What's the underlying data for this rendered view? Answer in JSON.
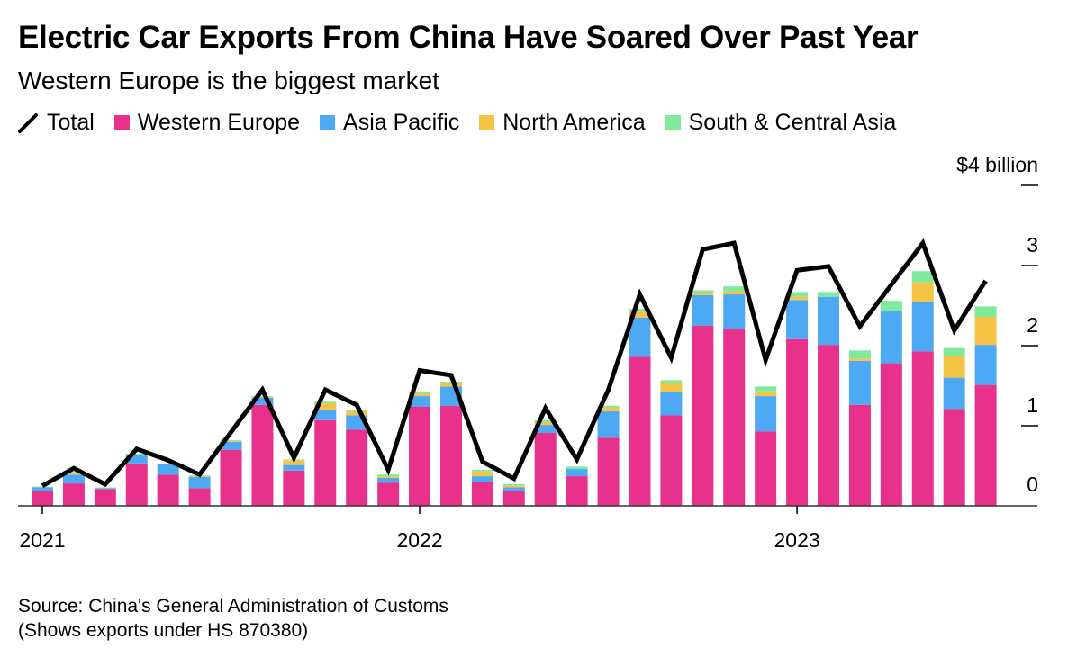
{
  "title": "Electric Car Exports From China Have Soared Over Past Year",
  "subtitle": "Western Europe is the biggest market",
  "source": [
    "Source: China's General Administration of Customs",
    "(Shows exports under HS 870380)"
  ],
  "legend": [
    {
      "name": "Total",
      "kind": "line",
      "color": "#000000"
    },
    {
      "name": "Western Europe",
      "kind": "box",
      "color": "#e8318a"
    },
    {
      "name": "Asia Pacific",
      "kind": "box",
      "color": "#4ea9f5"
    },
    {
      "name": "North America",
      "kind": "box",
      "color": "#f6c445"
    },
    {
      "name": "South & Central Asia",
      "kind": "box",
      "color": "#7fea9c"
    }
  ],
  "chart_data": {
    "type": "bar",
    "stacked": true,
    "title": "Electric Car Exports From China Have Soared Over Past Year",
    "subtitle": "Western Europe is the biggest market",
    "x": [
      "2021-01",
      "2021-02",
      "2021-03",
      "2021-04",
      "2021-05",
      "2021-06",
      "2021-07",
      "2021-08",
      "2021-09",
      "2021-10",
      "2021-11",
      "2021-12",
      "2022-01",
      "2022-02",
      "2022-03",
      "2022-04",
      "2022-05",
      "2022-06",
      "2022-07",
      "2022-08",
      "2022-09",
      "2022-10",
      "2022-11",
      "2022-12",
      "2023-01",
      "2023-02",
      "2023-03",
      "2023-04",
      "2023-05",
      "2023-06",
      "2023-07"
    ],
    "x_tick_labels": [
      "2021",
      "2022",
      "2023"
    ],
    "y_unit_label": "$4 billion",
    "y_tick_labels": [
      "0",
      "1",
      "2",
      "3",
      "$4 billion"
    ],
    "ylim": [
      0,
      4
    ],
    "grid": false,
    "legend_position": "top",
    "series": [
      {
        "name": "Western Europe",
        "color": "#e8318a",
        "values": [
          0.19,
          0.28,
          0.21,
          0.53,
          0.39,
          0.22,
          0.7,
          1.26,
          0.44,
          1.07,
          0.95,
          0.29,
          1.24,
          1.25,
          0.3,
          0.18,
          0.91,
          0.37,
          0.85,
          1.86,
          1.13,
          2.25,
          2.21,
          0.93,
          2.08,
          2.01,
          1.26,
          1.78,
          1.93,
          1.21,
          1.51
        ]
      },
      {
        "name": "Asia Pacific",
        "color": "#4ea9f5",
        "values": [
          0.04,
          0.11,
          0.01,
          0.1,
          0.13,
          0.14,
          0.1,
          0.09,
          0.07,
          0.13,
          0.18,
          0.06,
          0.13,
          0.24,
          0.07,
          0.05,
          0.1,
          0.09,
          0.33,
          0.49,
          0.29,
          0.38,
          0.43,
          0.44,
          0.49,
          0.6,
          0.55,
          0.65,
          0.61,
          0.39,
          0.5
        ]
      },
      {
        "name": "North America",
        "color": "#f6c445",
        "values": [
          0,
          0.03,
          0,
          0,
          0,
          0.01,
          0.01,
          0.01,
          0.06,
          0.08,
          0.05,
          0.02,
          0.03,
          0.05,
          0.06,
          0.02,
          0.04,
          0,
          0.05,
          0.07,
          0.11,
          0.03,
          0.04,
          0.06,
          0.04,
          0,
          0.03,
          0,
          0.25,
          0.27,
          0.35
        ]
      },
      {
        "name": "South & Central Asia",
        "color": "#7fea9c",
        "values": [
          0.01,
          0.01,
          0.01,
          0.02,
          0,
          0.01,
          0.01,
          0.01,
          0.01,
          0.02,
          0.01,
          0.02,
          0.02,
          0.01,
          0.02,
          0.02,
          0.02,
          0.03,
          0.02,
          0.04,
          0.04,
          0.03,
          0.06,
          0.06,
          0.06,
          0.06,
          0.1,
          0.13,
          0.14,
          0.1,
          0.13
        ]
      },
      {
        "name": "Total",
        "type": "line",
        "color": "#000000",
        "values": [
          0.25,
          0.47,
          0.27,
          0.71,
          0.57,
          0.39,
          0.92,
          1.45,
          0.6,
          1.45,
          1.26,
          0.45,
          1.69,
          1.63,
          0.55,
          0.34,
          1.22,
          0.58,
          1.45,
          2.64,
          1.85,
          3.2,
          3.28,
          1.82,
          2.94,
          2.99,
          2.24,
          2.76,
          3.28,
          2.19,
          2.81
        ]
      }
    ]
  }
}
